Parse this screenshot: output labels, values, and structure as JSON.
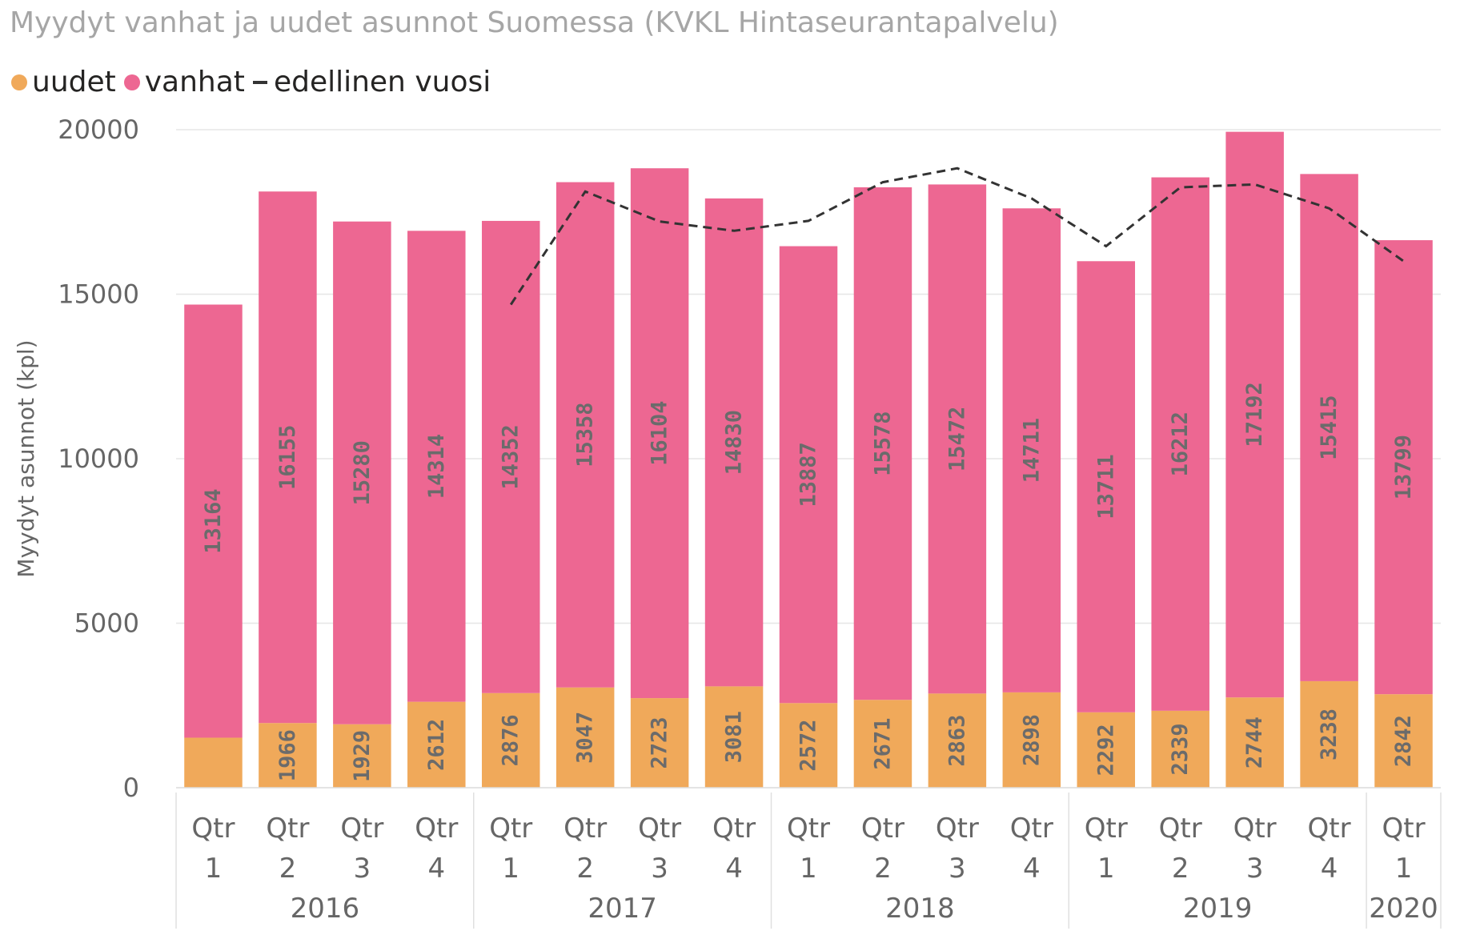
{
  "chart_data": {
    "type": "bar",
    "stacked": true,
    "title": "Myydyt vanhat ja uudet asunnot Suomessa (KVKL Hintaseurantapalvelu)",
    "ylabel": "Myydyt asunnot (kpl)",
    "xlabel": "",
    "ylim": [
      0,
      20000
    ],
    "yticks": [
      "0",
      "5000",
      "10000",
      "15000",
      "20000"
    ],
    "grid": true,
    "legend_position": "top-left",
    "categories": [
      "Qtr 1",
      "Qtr 2",
      "Qtr 3",
      "Qtr 4",
      "Qtr 1",
      "Qtr 2",
      "Qtr 3",
      "Qtr 4",
      "Qtr 1",
      "Qtr 2",
      "Qtr 3",
      "Qtr 4",
      "Qtr 1",
      "Qtr 2",
      "Qtr 3",
      "Qtr 4",
      "Qtr 1"
    ],
    "category_lines": [
      [
        "Qtr",
        "1"
      ],
      [
        "Qtr",
        "2"
      ],
      [
        "Qtr",
        "3"
      ],
      [
        "Qtr",
        "4"
      ],
      [
        "Qtr",
        "1"
      ],
      [
        "Qtr",
        "2"
      ],
      [
        "Qtr",
        "3"
      ],
      [
        "Qtr",
        "4"
      ],
      [
        "Qtr",
        "1"
      ],
      [
        "Qtr",
        "2"
      ],
      [
        "Qtr",
        "3"
      ],
      [
        "Qtr",
        "4"
      ],
      [
        "Qtr",
        "1"
      ],
      [
        "Qtr",
        "2"
      ],
      [
        "Qtr",
        "3"
      ],
      [
        "Qtr",
        "4"
      ],
      [
        "Qtr",
        "1"
      ]
    ],
    "year_groups": [
      {
        "label": "2016",
        "count": 4
      },
      {
        "label": "2017",
        "count": 4
      },
      {
        "label": "2018",
        "count": 4
      },
      {
        "label": "2019",
        "count": 4
      },
      {
        "label": "2020",
        "count": 1
      }
    ],
    "series": [
      {
        "name": "uudet",
        "color": "#f0a95a",
        "type": "bar",
        "values": [
          1520,
          1966,
          1929,
          2612,
          2876,
          3047,
          2723,
          3081,
          2572,
          2671,
          2863,
          2898,
          2292,
          2339,
          2744,
          3238,
          2842
        ],
        "labels": [
          "",
          "1966",
          "1929",
          "2612",
          "2876",
          "3047",
          "2723",
          "3081",
          "2572",
          "2671",
          "2863",
          "2898",
          "2292",
          "2339",
          "2744",
          "3238",
          "2842"
        ]
      },
      {
        "name": "vanhat",
        "color": "#ed6792",
        "type": "bar",
        "values": [
          13164,
          16155,
          15280,
          14314,
          14352,
          15358,
          16104,
          14830,
          13887,
          15578,
          15472,
          14711,
          13711,
          16212,
          17192,
          15415,
          13799
        ],
        "labels": [
          "13164",
          "16155",
          "15280",
          "14314",
          "14352",
          "15358",
          "16104",
          "14830",
          "13887",
          "15578",
          "15472",
          "14711",
          "13711",
          "16212",
          "17192",
          "15415",
          "13799"
        ]
      },
      {
        "name": "edellinen vuosi",
        "color": "#333333",
        "type": "line",
        "dashed": true,
        "values": [
          null,
          null,
          null,
          null,
          14684,
          18121,
          17209,
          16926,
          17228,
          18405,
          18827,
          17911,
          16459,
          18249,
          18335,
          17609,
          16003
        ]
      }
    ]
  }
}
